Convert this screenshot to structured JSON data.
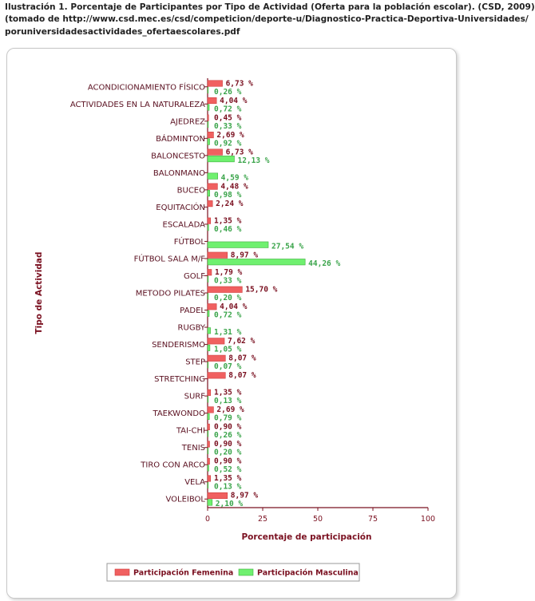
{
  "caption": {
    "line1": "Ilustración 1. Porcentaje de Participantes por Tipo de Actividad (Oferta para la población escolar). (CSD, 2009)",
    "line2": "(tomado de http://www.csd.mec.es/csd/competicion/deporte-u/Diagnostico-Practica-Deportiva-Universidades/",
    "line3": "poruniversidadesactividades_ofertaescolares.pdf"
  },
  "chart_data": {
    "type": "bar",
    "orientation": "horizontal",
    "categories": [
      "ACONDICIONAMIENTO FÍSICO",
      "ACTIVIDADES EN LA NATURALEZA",
      "AJEDREZ",
      "BÁDMINTON",
      "BALONCESTO",
      "BALONMANO",
      "BUCEO",
      "EQUITACIÓN",
      "ESCALADA",
      "FÚTBOL",
      "FÚTBOL SALA M/F",
      "GOLF",
      "METODO PILATES",
      "PADEL",
      "RUGBY",
      "SENDERISMO",
      "STEP",
      "STRETCHING",
      "SURF",
      "TAEKWONDO",
      "TAI-CHI",
      "TENIS",
      "TIRO CON ARCO",
      "VELA",
      "VOLEIBOL"
    ],
    "series": [
      {
        "name": "Participación Femenina",
        "color": "#f06060",
        "values": [
          6.73,
          4.04,
          0.45,
          2.69,
          6.73,
          null,
          4.48,
          2.24,
          1.35,
          null,
          8.97,
          1.79,
          15.7,
          4.04,
          null,
          7.62,
          8.07,
          8.07,
          1.35,
          2.69,
          0.9,
          0.9,
          0.9,
          1.35,
          8.97
        ],
        "labels": [
          "6,73 %",
          "4,04 %",
          "0,45 %",
          "2,69 %",
          "6,73 %",
          "",
          "4,48 %",
          "2,24 %",
          "1,35 %",
          "",
          "8,97 %",
          "1,79 %",
          "15,70 %",
          "4,04 %",
          "",
          "7,62 %",
          "8,07 %",
          "8,07 %",
          "1,35 %",
          "2,69 %",
          "0,90 %",
          "0,90 %",
          "0,90 %",
          "1,35 %",
          "8,97 %"
        ]
      },
      {
        "name": "Participación Masculina",
        "color": "#6ff06f",
        "values": [
          0.26,
          0.72,
          0.33,
          0.92,
          12.13,
          4.59,
          0.98,
          null,
          0.46,
          27.54,
          44.26,
          0.33,
          0.2,
          0.72,
          1.31,
          1.05,
          0.07,
          null,
          0.13,
          0.79,
          0.26,
          0.2,
          0.52,
          0.13,
          2.1
        ],
        "labels": [
          "0,26 %",
          "0,72 %",
          "0,33 %",
          "0,92 %",
          "12,13 %",
          "4,59 %",
          "0,98 %",
          "",
          "0,46 %",
          "27,54 %",
          "44,26 %",
          "0,33 %",
          "0,20 %",
          "0,72 %",
          "1,31 %",
          "1,05 %",
          "0,07 %",
          "",
          "0,13 %",
          "0,79 %",
          "0,26 %",
          "0,20 %",
          "0,52 %",
          "0,13 %",
          "2,10 %"
        ]
      }
    ],
    "xlim": [
      0,
      100
    ],
    "xticks": [
      "0",
      "25",
      "50",
      "75",
      "100"
    ],
    "xlabel": "Porcentaje de participación",
    "ylabel": "Tipo de Actividad",
    "legend_position": "bottom",
    "grid": false
  }
}
